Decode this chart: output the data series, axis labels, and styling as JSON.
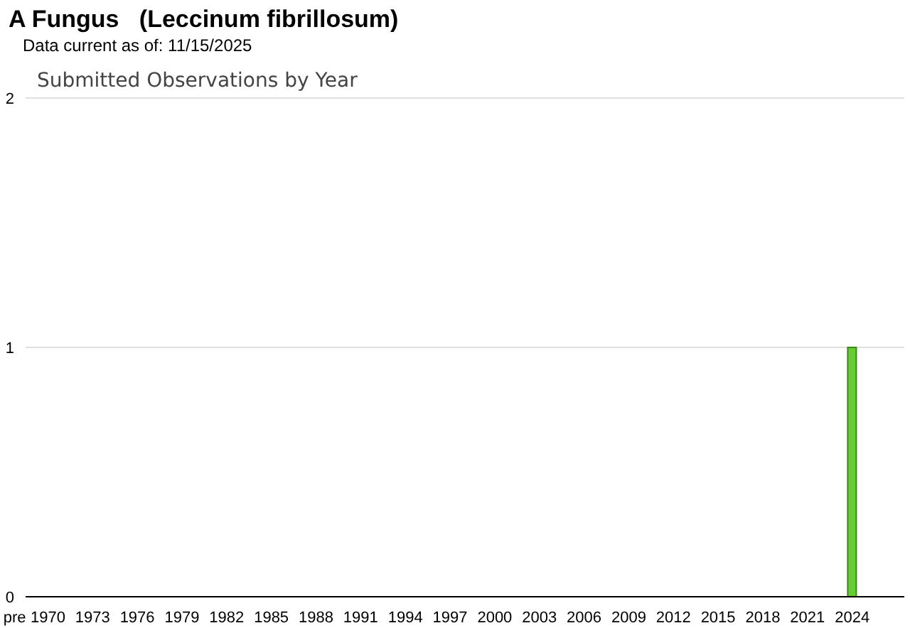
{
  "chart_data": {
    "type": "bar",
    "title": "A Fungus   (Leccinum fibrillosum)",
    "subtitle": "Data current as of: 11/15/2025",
    "annotations": [
      "Submitted Observations by Year"
    ],
    "categories": [
      "pre",
      "1970",
      null,
      null,
      "1973",
      null,
      null,
      "1976",
      null,
      null,
      "1979",
      null,
      null,
      "1982",
      null,
      null,
      "1985",
      null,
      null,
      "1988",
      null,
      null,
      "1991",
      null,
      null,
      "1994",
      null,
      null,
      "1997",
      null,
      null,
      "2000",
      null,
      null,
      "2003",
      null,
      null,
      "2006",
      null,
      null,
      "2009",
      null,
      null,
      "2012",
      null,
      null,
      "2015",
      null,
      null,
      "2018",
      null,
      null,
      "2021",
      null,
      null,
      "2024",
      null,
      null,
      null
    ],
    "values": [
      0,
      0,
      0,
      0,
      0,
      0,
      0,
      0,
      0,
      0,
      0,
      0,
      0,
      0,
      0,
      0,
      0,
      0,
      0,
      0,
      0,
      0,
      0,
      0,
      0,
      0,
      0,
      0,
      0,
      0,
      0,
      0,
      0,
      0,
      0,
      0,
      0,
      0,
      0,
      0,
      0,
      0,
      0,
      0,
      0,
      0,
      0,
      0,
      0,
      0,
      0,
      0,
      0,
      0,
      0,
      1,
      0,
      0,
      0
    ],
    "color": "#66cc33",
    "ylim": [
      0,
      2
    ],
    "yticks": [
      0,
      1,
      2
    ],
    "grid": "y",
    "legend": false
  }
}
